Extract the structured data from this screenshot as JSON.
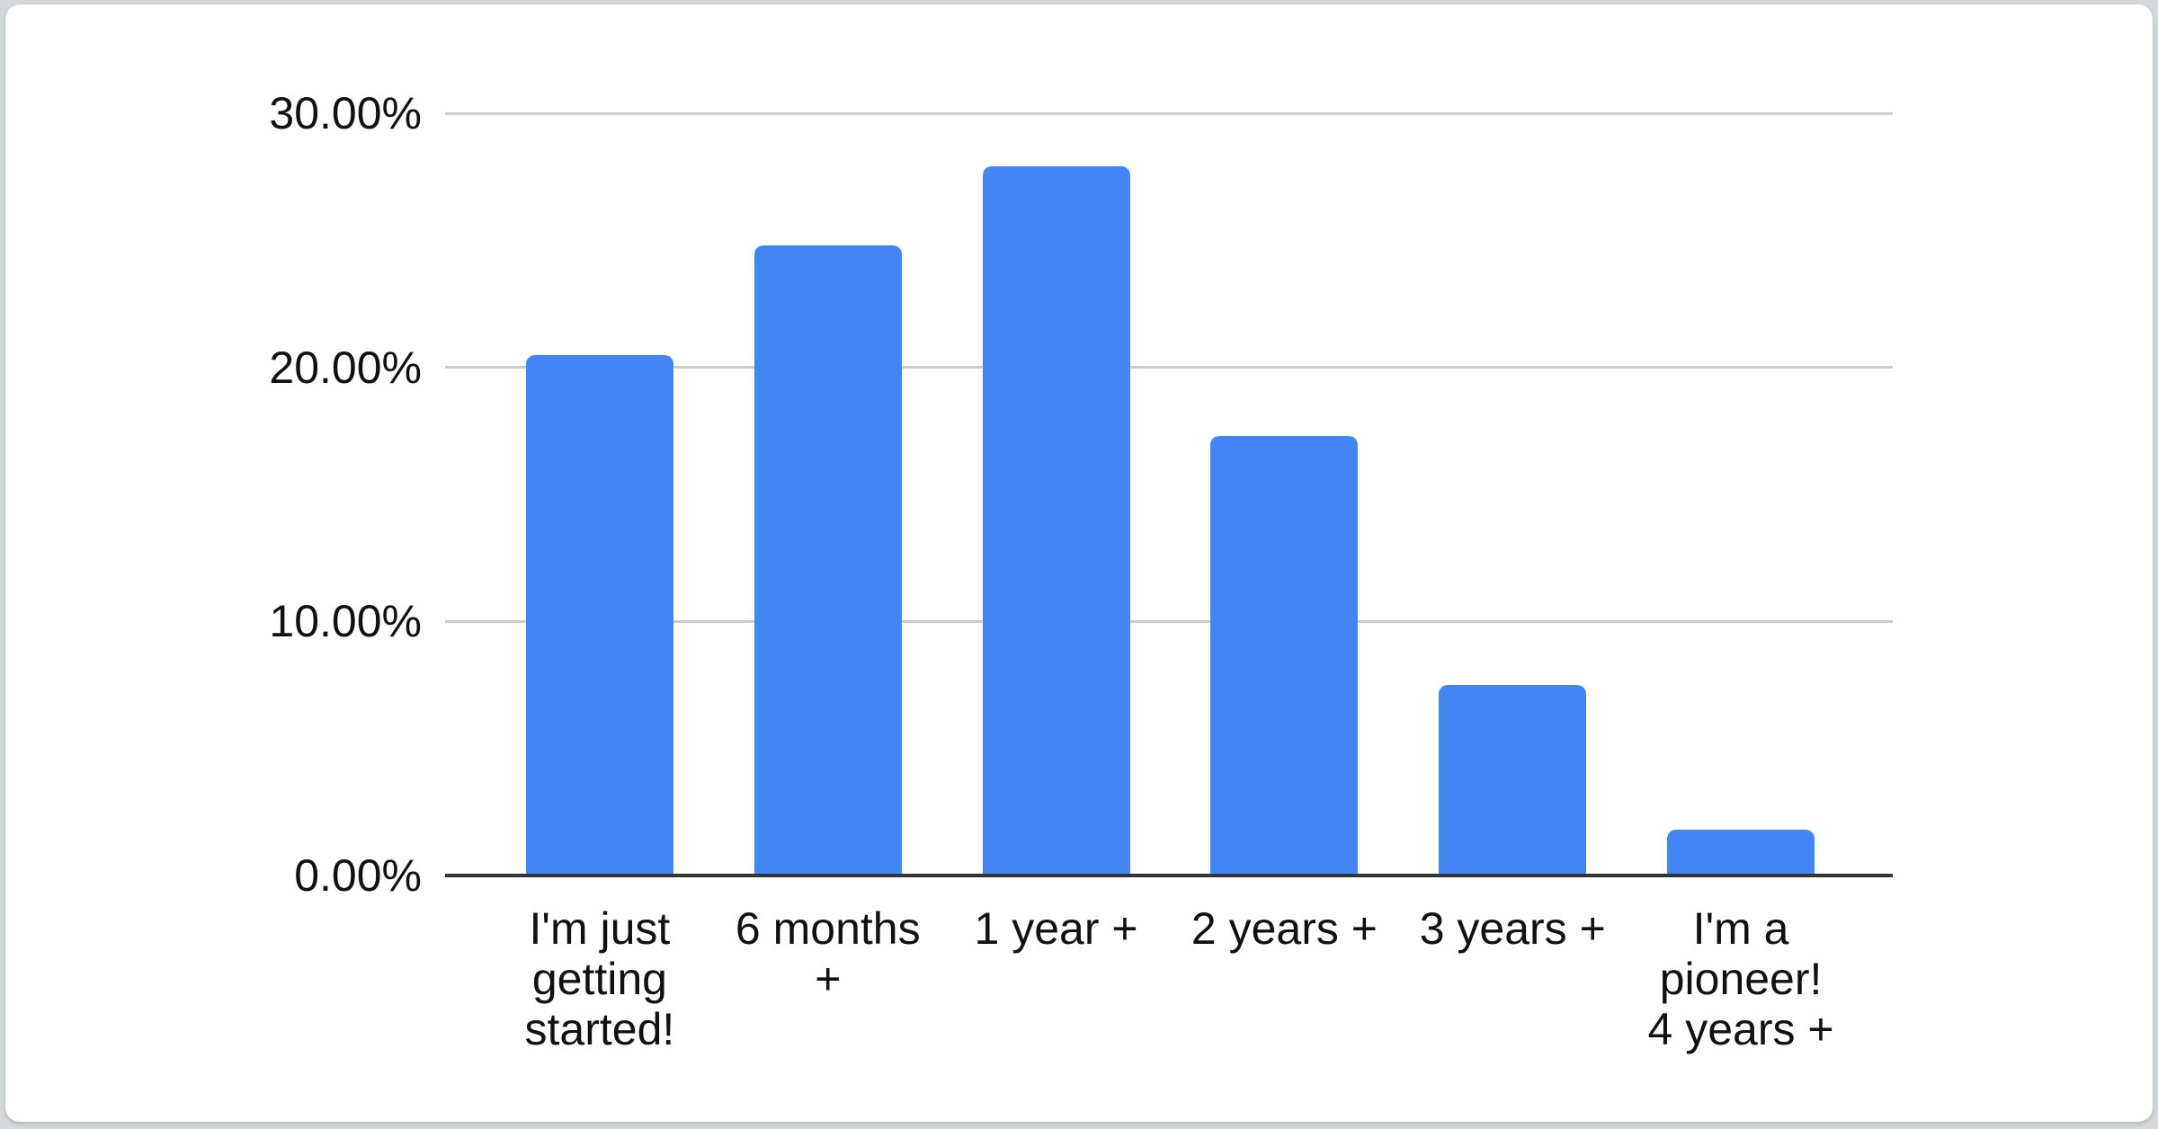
{
  "page": {
    "background_color": "#d4d8da",
    "card_color": "#ffffff"
  },
  "chart_data": {
    "type": "bar",
    "title": "",
    "xlabel": "",
    "ylabel": "",
    "categories": [
      "I'm just getting started!",
      "6 months +",
      "1 year +",
      "2 years +",
      "3 years +",
      "I'm a pioneer! 4 years +"
    ],
    "values": [
      20.5,
      24.8,
      27.9,
      17.3,
      7.5,
      1.8
    ],
    "value_unit": "%",
    "x_label_display_lines": [
      [
        "I'm just",
        "getting",
        "started!"
      ],
      [
        "6 months",
        "+"
      ],
      [
        "1 year +"
      ],
      [
        "2 years +"
      ],
      [
        "3 years +"
      ],
      [
        "I'm a",
        "pioneer!",
        "4 years +"
      ]
    ],
    "ylim": [
      0,
      30
    ],
    "ytick_values": [
      0,
      10,
      20,
      30
    ],
    "ytick_labels": [
      "0.00%",
      "10.00%",
      "20.00%",
      "30.00%"
    ],
    "grid": "horizontal",
    "legend": "none",
    "colors": {
      "bar": "#4285F4",
      "gridline": "#cccccc",
      "axis_line": "#333333",
      "tick_label": "#111111"
    }
  }
}
